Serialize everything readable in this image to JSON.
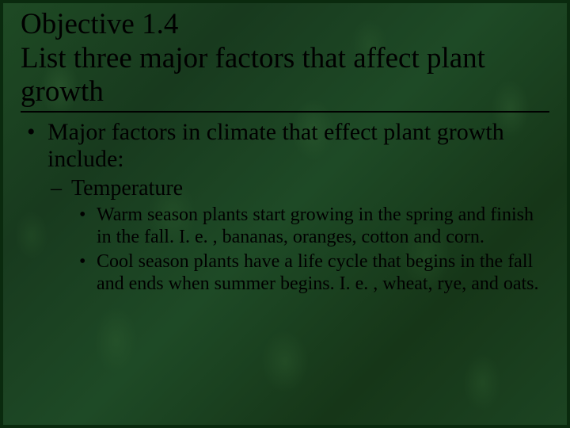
{
  "slide": {
    "background_base_color": "#1a4020",
    "border_color": "#0a2a0e",
    "text_color": "#000000",
    "font_family": "Times New Roman",
    "title": {
      "line1": "Objective 1.4",
      "line2": "List three major factors that affect plant growth",
      "fontsize": 37,
      "underline_color": "#000000"
    },
    "body": {
      "lvl1_text": "Major factors in climate that effect plant growth include:",
      "lvl1_fontsize": 30,
      "lvl2_text": "Temperature",
      "lvl2_fontsize": 28,
      "lvl3_items": [
        "Warm season plants start growing in the spring and finish in the fall.  I. e. , bananas, oranges, cotton and corn.",
        "Cool season plants have a life cycle that begins in the fall and ends when summer begins.  I. e. , wheat, rye, and oats."
      ],
      "lvl3_fontsize": 24
    },
    "bullets": {
      "level1": "•",
      "level2": "–",
      "level3": "•"
    }
  }
}
